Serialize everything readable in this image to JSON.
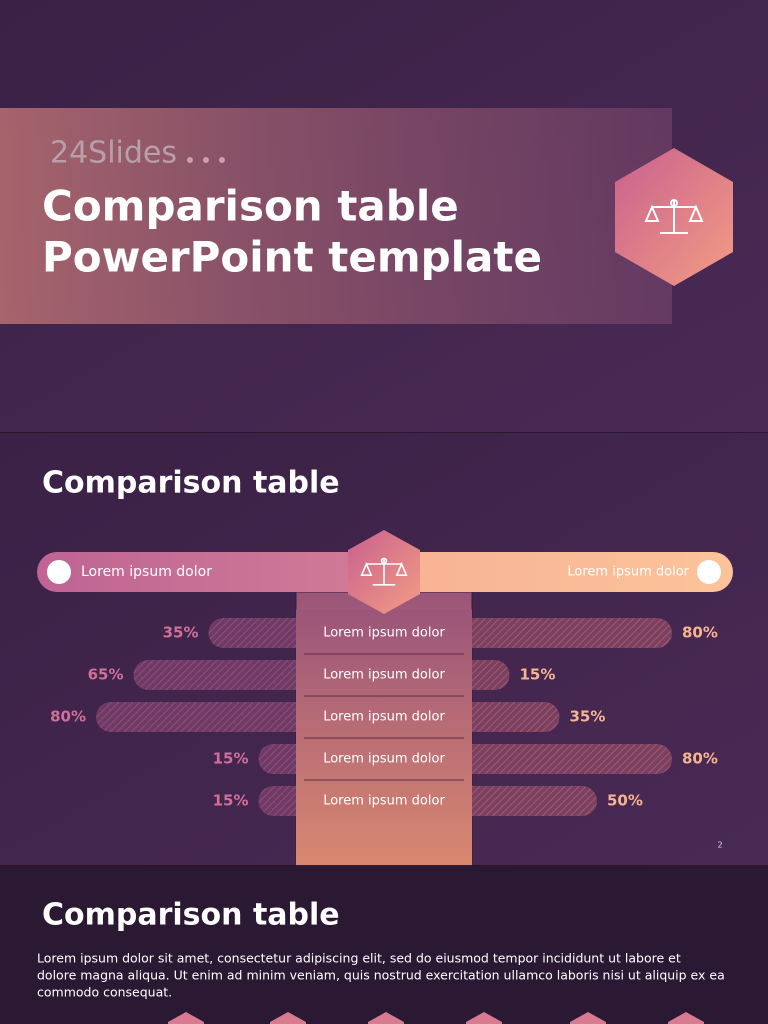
{
  "slide1": {
    "logo": "24Slides",
    "title_lines": [
      "Comparison table",
      "PowerPoint template"
    ]
  },
  "slide2": {
    "title": "Comparison table",
    "left_header": "Lorem ipsum dolor",
    "right_header": "Lorem ipsum dolor",
    "rows": [
      {
        "label": "Lorem ipsum dolor",
        "left": 35,
        "left_label": "35%",
        "right": 80,
        "right_label": "80%"
      },
      {
        "label": "Lorem ipsum dolor",
        "left": 65,
        "left_label": "65%",
        "right": 15,
        "right_label": "15%"
      },
      {
        "label": "Lorem ipsum dolor",
        "left": 80,
        "left_label": "80%",
        "right": 35,
        "right_label": "35%"
      },
      {
        "label": "Lorem ipsum dolor",
        "left": 15,
        "left_label": "15%",
        "right": 80,
        "right_label": "80%"
      },
      {
        "label": "Lorem ipsum dolor",
        "left": 15,
        "left_label": "15%",
        "right": 50,
        "right_label": "50%"
      }
    ],
    "page_number": "2"
  },
  "slide3": {
    "title": "Comparison table",
    "body_lines": [
      "Lorem ipsum dolor sit amet, consectetur adipiscing elit, sed do eiusmod tempor incididunt ut labore et",
      "dolore magna aliqua. Ut enim ad minim veniam, quis nostrud exercitation ullamco laboris nisi ut aliquip ex ea",
      "commodo consequat."
    ]
  }
}
